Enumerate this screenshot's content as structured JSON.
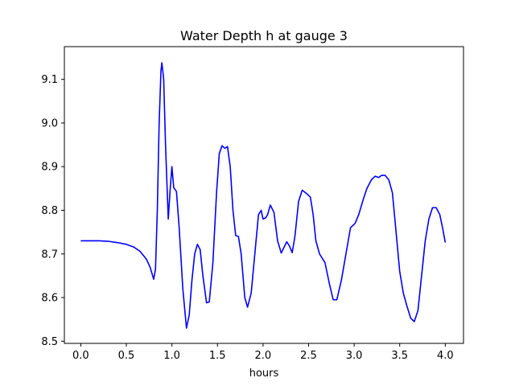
{
  "chart_data": {
    "type": "line",
    "title": "Water Depth h at gauge 3",
    "xlabel": "hours",
    "ylabel": "",
    "xlim": [
      -0.18,
      4.2
    ],
    "ylim": [
      8.495,
      9.175
    ],
    "xticks": [
      0.0,
      0.5,
      1.0,
      1.5,
      2.0,
      2.5,
      3.0,
      3.5,
      4.0
    ],
    "xtick_labels": [
      "0.0",
      "0.5",
      "1.0",
      "1.5",
      "2.0",
      "2.5",
      "3.0",
      "3.5",
      "4.0"
    ],
    "yticks": [
      8.5,
      8.6,
      8.7,
      8.8,
      8.9,
      9.0,
      9.1
    ],
    "ytick_labels": [
      "8.5",
      "8.6",
      "8.7",
      "8.8",
      "8.9",
      "9.0",
      "9.1"
    ],
    "grid": false,
    "legend": false,
    "series": [
      {
        "color": "#0000ff",
        "points": [
          [
            0.0,
            8.73
          ],
          [
            0.1,
            8.73
          ],
          [
            0.2,
            8.73
          ],
          [
            0.3,
            8.729
          ],
          [
            0.4,
            8.726
          ],
          [
            0.5,
            8.722
          ],
          [
            0.58,
            8.716
          ],
          [
            0.65,
            8.706
          ],
          [
            0.72,
            8.688
          ],
          [
            0.76,
            8.67
          ],
          [
            0.8,
            8.642
          ],
          [
            0.82,
            8.665
          ],
          [
            0.84,
            8.8
          ],
          [
            0.86,
            9.0
          ],
          [
            0.88,
            9.12
          ],
          [
            0.89,
            9.138
          ],
          [
            0.91,
            9.1
          ],
          [
            0.93,
            8.95
          ],
          [
            0.96,
            8.78
          ],
          [
            0.98,
            8.845
          ],
          [
            1.0,
            8.9
          ],
          [
            1.02,
            8.852
          ],
          [
            1.05,
            8.843
          ],
          [
            1.08,
            8.76
          ],
          [
            1.12,
            8.62
          ],
          [
            1.16,
            8.53
          ],
          [
            1.19,
            8.56
          ],
          [
            1.22,
            8.64
          ],
          [
            1.25,
            8.7
          ],
          [
            1.28,
            8.722
          ],
          [
            1.31,
            8.71
          ],
          [
            1.34,
            8.65
          ],
          [
            1.38,
            8.588
          ],
          [
            1.41,
            8.59
          ],
          [
            1.45,
            8.68
          ],
          [
            1.49,
            8.84
          ],
          [
            1.52,
            8.93
          ],
          [
            1.55,
            8.948
          ],
          [
            1.58,
            8.942
          ],
          [
            1.61,
            8.946
          ],
          [
            1.64,
            8.9
          ],
          [
            1.67,
            8.8
          ],
          [
            1.7,
            8.742
          ],
          [
            1.73,
            8.74
          ],
          [
            1.76,
            8.7
          ],
          [
            1.8,
            8.6
          ],
          [
            1.83,
            8.578
          ],
          [
            1.87,
            8.61
          ],
          [
            1.91,
            8.7
          ],
          [
            1.95,
            8.79
          ],
          [
            1.98,
            8.8
          ],
          [
            2.0,
            8.78
          ],
          [
            2.03,
            8.783
          ],
          [
            2.05,
            8.79
          ],
          [
            2.08,
            8.812
          ],
          [
            2.12,
            8.795
          ],
          [
            2.16,
            8.73
          ],
          [
            2.2,
            8.702
          ],
          [
            2.23,
            8.715
          ],
          [
            2.26,
            8.728
          ],
          [
            2.29,
            8.718
          ],
          [
            2.32,
            8.703
          ],
          [
            2.35,
            8.74
          ],
          [
            2.39,
            8.82
          ],
          [
            2.43,
            8.846
          ],
          [
            2.48,
            8.838
          ],
          [
            2.52,
            8.83
          ],
          [
            2.55,
            8.79
          ],
          [
            2.58,
            8.73
          ],
          [
            2.62,
            8.7
          ],
          [
            2.68,
            8.68
          ],
          [
            2.73,
            8.63
          ],
          [
            2.77,
            8.595
          ],
          [
            2.81,
            8.595
          ],
          [
            2.86,
            8.64
          ],
          [
            2.91,
            8.7
          ],
          [
            2.96,
            8.76
          ],
          [
            3.01,
            8.77
          ],
          [
            3.05,
            8.79
          ],
          [
            3.1,
            8.825
          ],
          [
            3.14,
            8.85
          ],
          [
            3.19,
            8.87
          ],
          [
            3.23,
            8.878
          ],
          [
            3.27,
            8.875
          ],
          [
            3.3,
            8.88
          ],
          [
            3.34,
            8.88
          ],
          [
            3.38,
            8.87
          ],
          [
            3.42,
            8.84
          ],
          [
            3.46,
            8.75
          ],
          [
            3.5,
            8.66
          ],
          [
            3.54,
            8.61
          ],
          [
            3.58,
            8.58
          ],
          [
            3.62,
            8.553
          ],
          [
            3.66,
            8.545
          ],
          [
            3.7,
            8.57
          ],
          [
            3.74,
            8.65
          ],
          [
            3.78,
            8.73
          ],
          [
            3.82,
            8.78
          ],
          [
            3.86,
            8.806
          ],
          [
            3.9,
            8.806
          ],
          [
            3.94,
            8.79
          ],
          [
            3.97,
            8.76
          ],
          [
            4.0,
            8.726
          ]
        ]
      }
    ]
  }
}
